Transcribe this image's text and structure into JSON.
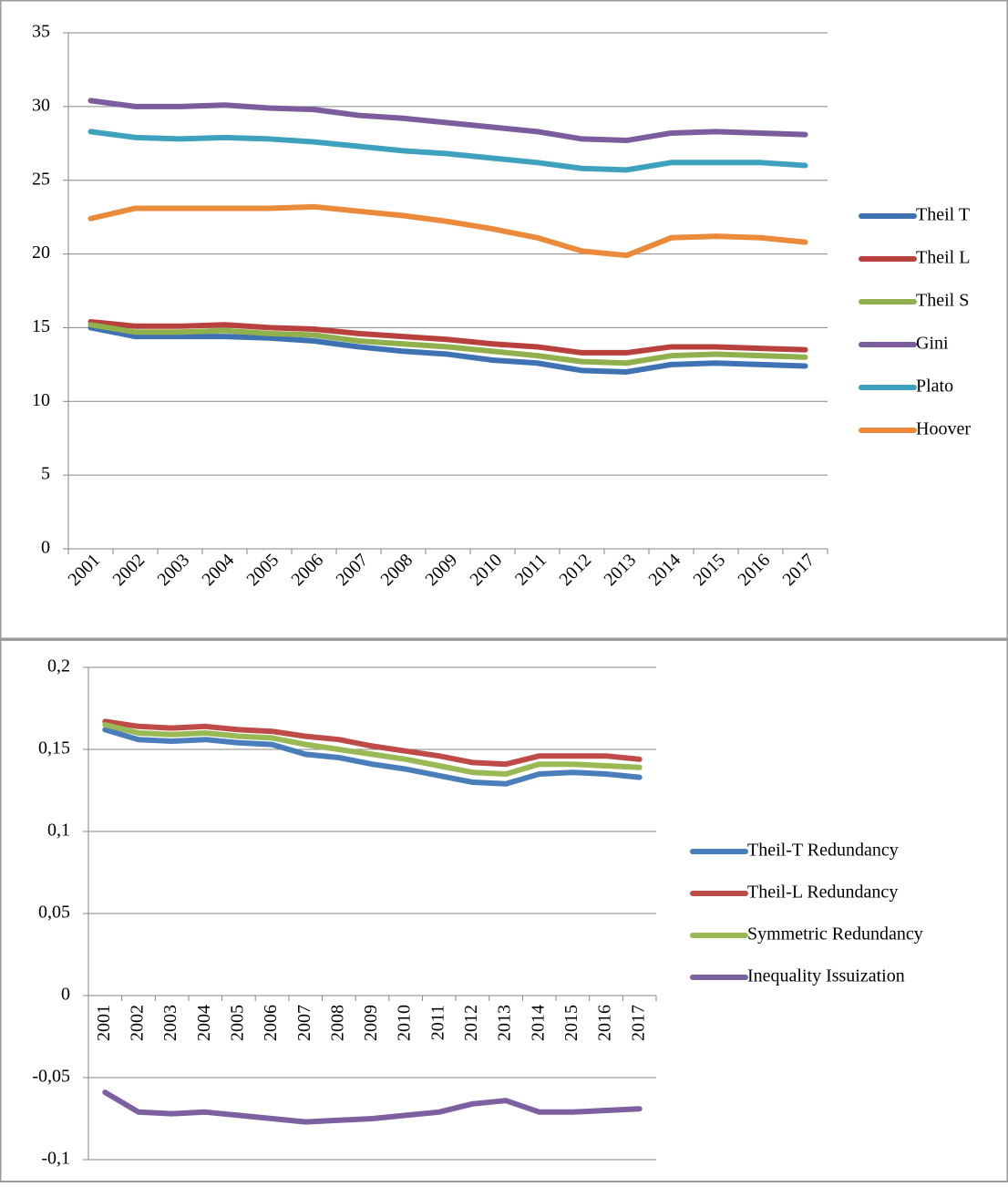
{
  "chart_data": [
    {
      "type": "line",
      "categories": [
        "2001",
        "2002",
        "2003",
        "2004",
        "2005",
        "2006",
        "2007",
        "2008",
        "2009",
        "2010",
        "2011",
        "2012",
        "2013",
        "2014",
        "2015",
        "2016",
        "2017"
      ],
      "series": [
        {
          "name": "Theil T",
          "color": "#3f72b3",
          "values": [
            15.0,
            14.4,
            14.4,
            14.4,
            14.3,
            14.1,
            13.7,
            13.4,
            13.2,
            12.8,
            12.6,
            12.1,
            12.0,
            12.5,
            12.6,
            12.5,
            12.4
          ]
        },
        {
          "name": "Theil L",
          "color": "#b8413e",
          "values": [
            15.4,
            15.1,
            15.1,
            15.2,
            15.0,
            14.9,
            14.6,
            14.4,
            14.2,
            13.9,
            13.7,
            13.3,
            13.3,
            13.7,
            13.7,
            13.6,
            13.5
          ]
        },
        {
          "name": "Theil S",
          "color": "#8fb04c",
          "values": [
            15.2,
            14.7,
            14.7,
            14.8,
            14.6,
            14.5,
            14.1,
            13.9,
            13.7,
            13.4,
            13.1,
            12.7,
            12.6,
            13.1,
            13.2,
            13.1,
            13.0
          ]
        },
        {
          "name": "Gini",
          "color": "#7b5c9d",
          "values": [
            30.4,
            30.0,
            30.0,
            30.1,
            29.9,
            29.8,
            29.4,
            29.2,
            28.9,
            28.6,
            28.3,
            27.8,
            27.7,
            28.2,
            28.3,
            28.2,
            28.1
          ]
        },
        {
          "name": "Plato",
          "color": "#3ea2bf",
          "values": [
            28.3,
            27.9,
            27.8,
            27.9,
            27.8,
            27.6,
            27.3,
            27.0,
            26.8,
            26.5,
            26.2,
            25.8,
            25.7,
            26.2,
            26.2,
            26.2,
            26.0
          ]
        },
        {
          "name": "Hoover",
          "color": "#ec8a3c",
          "values": [
            22.4,
            23.1,
            23.1,
            23.1,
            23.1,
            23.2,
            22.9,
            22.6,
            22.2,
            21.7,
            21.1,
            20.2,
            19.9,
            21.1,
            21.2,
            21.1,
            20.8
          ]
        }
      ],
      "ylim": [
        0,
        35
      ],
      "yticks": [
        0,
        5,
        10,
        15,
        20,
        25,
        30,
        35
      ],
      "grid": true,
      "legend": "right",
      "x_label_rotation": -45
    },
    {
      "type": "line",
      "categories": [
        "2001",
        "2002",
        "2003",
        "2004",
        "2005",
        "2006",
        "2007",
        "2008",
        "2009",
        "2010",
        "2011",
        "2012",
        "2013",
        "2014",
        "2015",
        "2016",
        "2017"
      ],
      "series": [
        {
          "name": "Theil-T Redundancy",
          "color": "#4a7ebb",
          "values": [
            0.162,
            0.156,
            0.155,
            0.156,
            0.154,
            0.153,
            0.147,
            0.145,
            0.141,
            0.138,
            0.134,
            0.13,
            0.129,
            0.135,
            0.136,
            0.135,
            0.133
          ]
        },
        {
          "name": "Theil-L Redundancy",
          "color": "#be4b48",
          "values": [
            0.167,
            0.164,
            0.163,
            0.164,
            0.162,
            0.161,
            0.158,
            0.156,
            0.152,
            0.149,
            0.146,
            0.142,
            0.141,
            0.146,
            0.146,
            0.146,
            0.144
          ]
        },
        {
          "name": "Symmetric Redundancy",
          "color": "#98b954",
          "values": [
            0.165,
            0.16,
            0.159,
            0.16,
            0.158,
            0.157,
            0.153,
            0.15,
            0.147,
            0.144,
            0.14,
            0.136,
            0.135,
            0.141,
            0.141,
            0.14,
            0.139
          ]
        },
        {
          "name": "Inequality Issuization",
          "color": "#7d60a0",
          "values": [
            -0.059,
            -0.071,
            -0.072,
            -0.071,
            -0.073,
            -0.075,
            -0.077,
            -0.076,
            -0.075,
            -0.073,
            -0.071,
            -0.066,
            -0.064,
            -0.071,
            -0.071,
            -0.07,
            -0.069
          ]
        }
      ],
      "ylim": [
        -0.1,
        0.2
      ],
      "yticks": [
        {
          "value": -0.1,
          "label": "-0,1"
        },
        {
          "value": -0.05,
          "label": "-0,05"
        },
        0,
        {
          "value": 0.05,
          "label": "0,05"
        },
        {
          "value": 0.1,
          "label": "0,1"
        },
        {
          "value": 0.15,
          "label": "0,15"
        },
        {
          "value": 0.2,
          "label": "0,2"
        }
      ],
      "grid": true,
      "legend": "right",
      "x_label_rotation": -90
    }
  ]
}
